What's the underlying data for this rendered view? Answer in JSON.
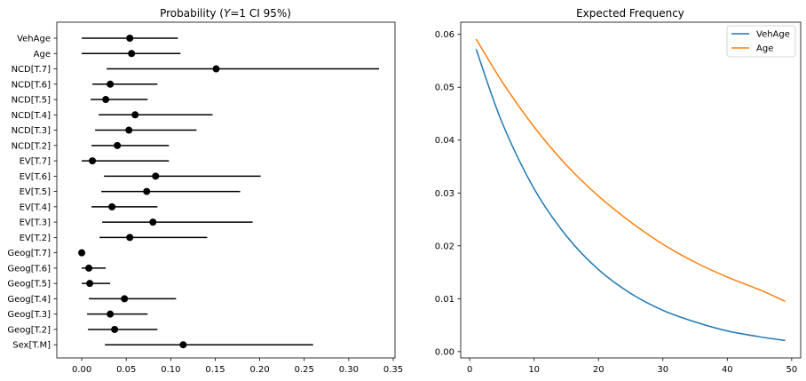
{
  "chart_data": [
    {
      "type": "scatter",
      "title_parts": {
        "pre": "Probability (",
        "var": "Y",
        "post": "=1 CI 95%)"
      },
      "categories": [
        "VehAge",
        "Age",
        "NCD[T.7]",
        "NCD[T.6]",
        "NCD[T.5]",
        "NCD[T.4]",
        "NCD[T.3]",
        "NCD[T.2]",
        "EV[T.7]",
        "EV[T.6]",
        "EV[T.5]",
        "EV[T.4]",
        "EV[T.3]",
        "EV[T.2]",
        "Geog[T.7]",
        "Geog[T.6]",
        "Geog[T.5]",
        "Geog[T.4]",
        "Geog[T.3]",
        "Geog[T.2]",
        "Sex[T.M]"
      ],
      "estimates": [
        0.054,
        0.056,
        0.151,
        0.032,
        0.027,
        0.06,
        0.053,
        0.04,
        0.012,
        0.083,
        0.073,
        0.034,
        0.08,
        0.054,
        0.0,
        0.008,
        0.009,
        0.048,
        0.032,
        0.037,
        0.114
      ],
      "ci_low": [
        0.0,
        0.0,
        0.028,
        0.012,
        0.01,
        0.019,
        0.015,
        0.011,
        0.0,
        0.025,
        0.022,
        0.011,
        0.023,
        0.02,
        0.0,
        0.0,
        0.0,
        0.008,
        0.006,
        0.007,
        0.026
      ],
      "ci_high": [
        0.108,
        0.111,
        0.334,
        0.085,
        0.074,
        0.147,
        0.129,
        0.098,
        0.098,
        0.201,
        0.178,
        0.085,
        0.192,
        0.141,
        0.0,
        0.027,
        0.032,
        0.106,
        0.074,
        0.085,
        0.26
      ],
      "xlim": [
        -0.028,
        0.352
      ],
      "xticks": [
        0.0,
        0.05,
        0.1,
        0.15,
        0.2,
        0.25,
        0.3,
        0.35
      ],
      "xtick_labels": [
        "0.00",
        "0.05",
        "0.10",
        "0.15",
        "0.20",
        "0.25",
        "0.30",
        "0.35"
      ],
      "marker_color": "#000000"
    },
    {
      "type": "line",
      "title": "Expected Frequency",
      "xlim": [
        -1.4,
        51.4
      ],
      "ylim": [
        -0.0012,
        0.0623
      ],
      "xticks": [
        0,
        10,
        20,
        30,
        40,
        50
      ],
      "xtick_labels": [
        "0",
        "10",
        "20",
        "30",
        "40",
        "50"
      ],
      "yticks": [
        0.0,
        0.01,
        0.02,
        0.03,
        0.04,
        0.05,
        0.06
      ],
      "ytick_labels": [
        "0.00",
        "0.01",
        "0.02",
        "0.03",
        "0.04",
        "0.05",
        "0.06"
      ],
      "legend_position": "top-right",
      "series": [
        {
          "name": "VehAge",
          "color": "#1f77b4",
          "x": [
            1,
            5,
            10,
            15,
            20,
            25,
            30,
            35,
            40,
            45,
            49
          ],
          "y": [
            0.0572,
            0.0434,
            0.0308,
            0.0219,
            0.0155,
            0.011,
            0.0078,
            0.0056,
            0.0039,
            0.0028,
            0.0021
          ]
        },
        {
          "name": "Age",
          "color": "#ff7f0e",
          "x": [
            1,
            5,
            10,
            15,
            20,
            25,
            30,
            35,
            40,
            45,
            49
          ],
          "y": [
            0.0591,
            0.0511,
            0.0425,
            0.0353,
            0.0294,
            0.0245,
            0.0203,
            0.0169,
            0.0141,
            0.0117,
            0.0095
          ]
        }
      ]
    }
  ]
}
